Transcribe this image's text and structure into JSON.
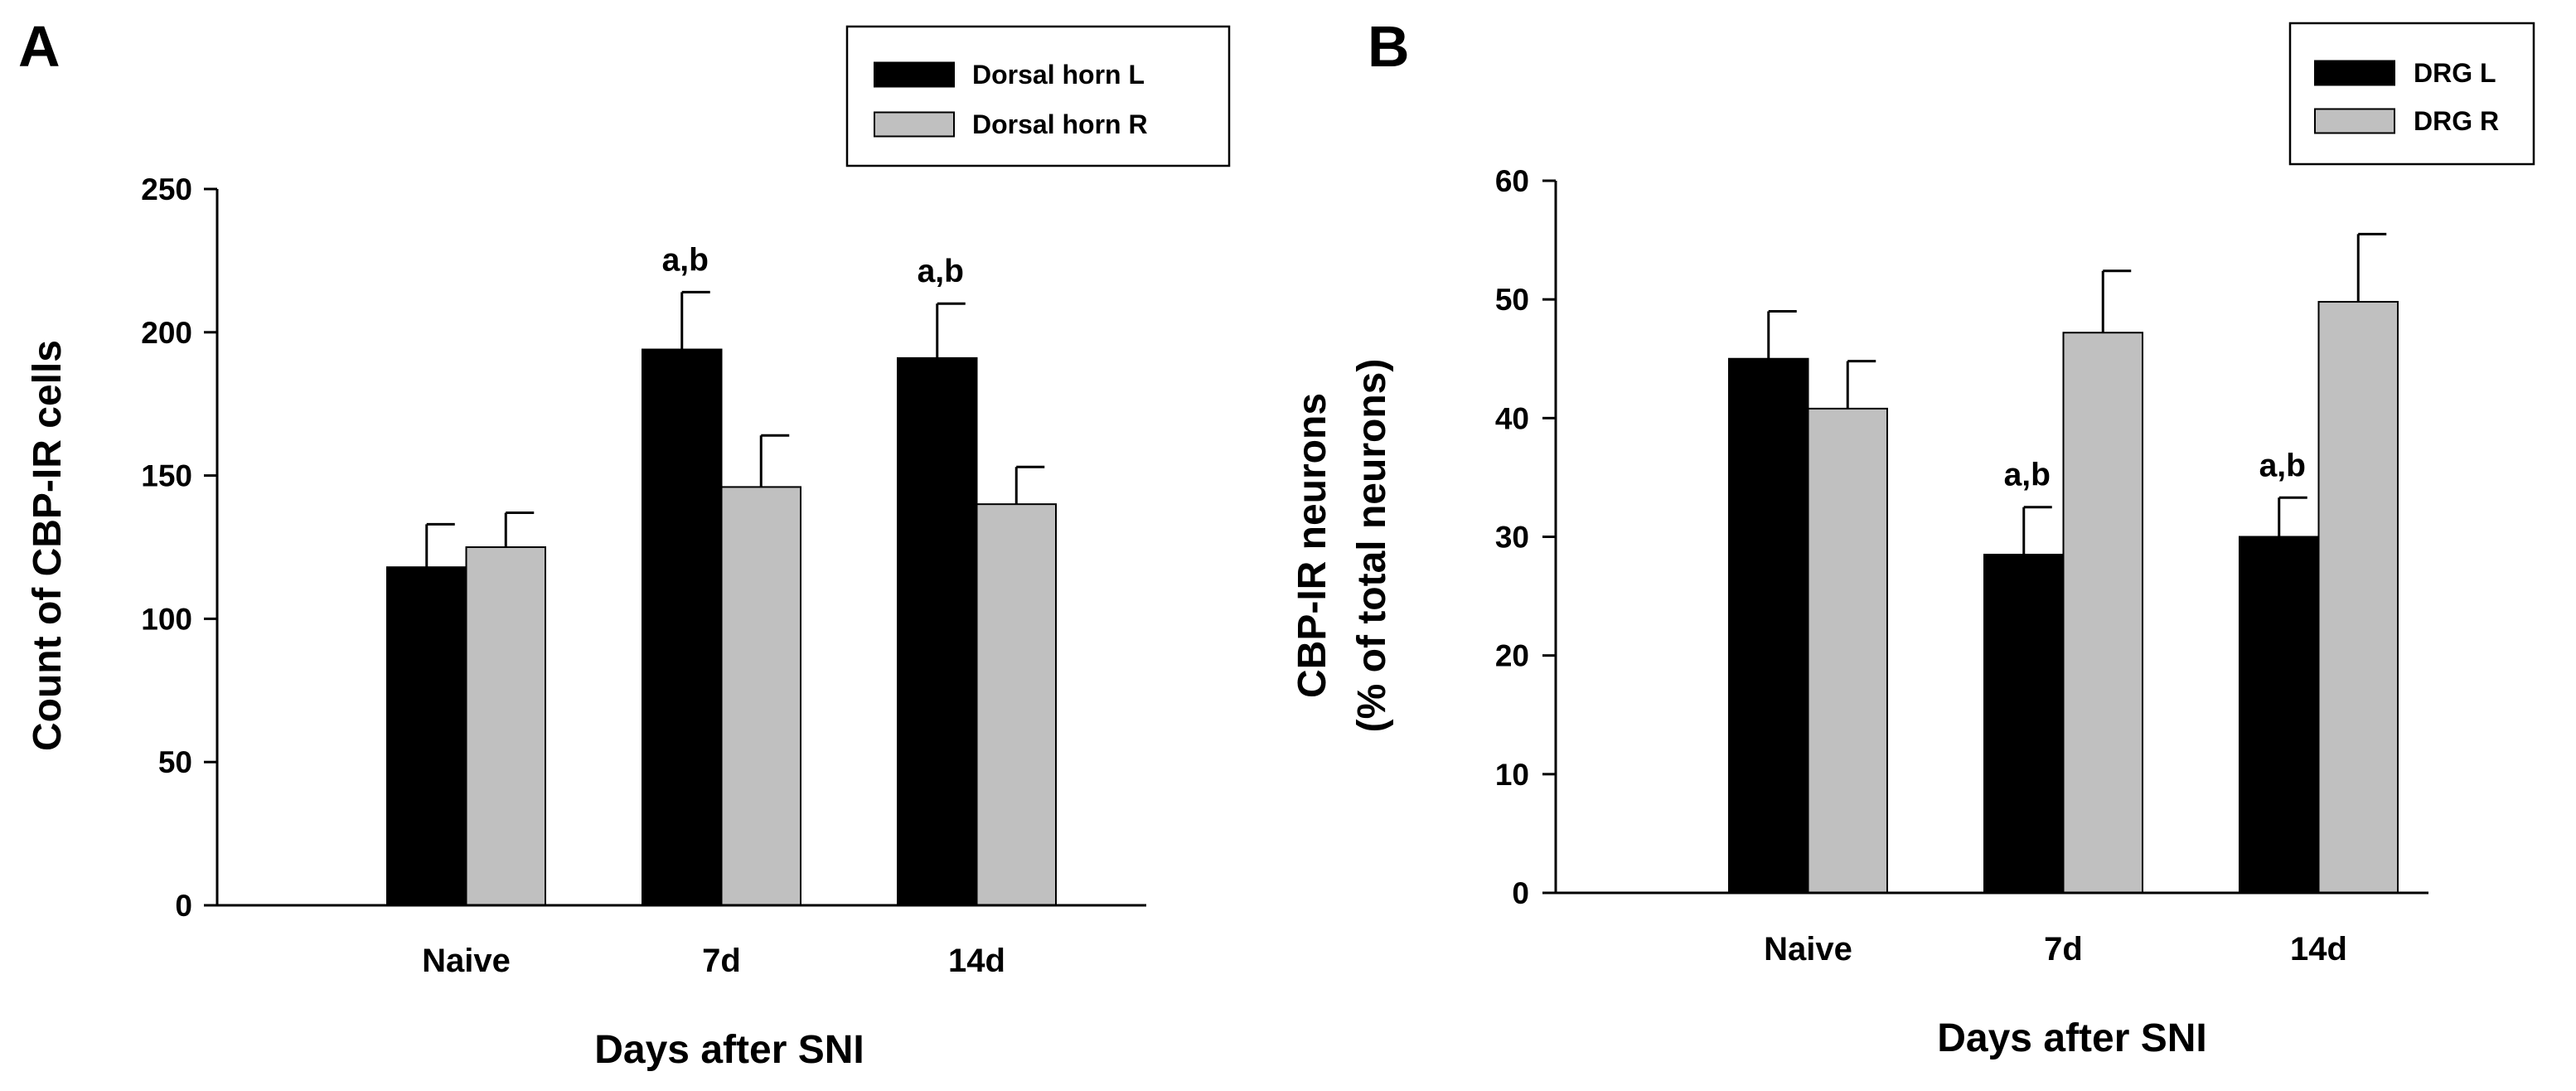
{
  "chart_data": [
    {
      "type": "bar",
      "panel_letter": "A",
      "categories": [
        "Naive",
        "7d",
        "14d"
      ],
      "series": [
        {
          "name": "Dorsal horn L",
          "color": "#000000",
          "values": [
            118,
            194,
            191
          ],
          "errors": [
            15,
            20,
            19
          ]
        },
        {
          "name": "Dorsal horn R",
          "color": "#c0c0c0",
          "values": [
            125,
            146,
            140
          ],
          "errors": [
            12,
            18,
            13
          ]
        }
      ],
      "annotations": [
        {
          "text": "a,b",
          "category": "7d",
          "series": "Dorsal horn L"
        },
        {
          "text": "a,b",
          "category": "14d",
          "series": "Dorsal horn L"
        }
      ],
      "xlabel": "Days after SNI",
      "ylabel": [
        "Count of CBP-IR cells"
      ],
      "ylim": [
        0,
        250
      ],
      "yticks": [
        "0",
        "50",
        "100",
        "150",
        "200",
        "250"
      ],
      "legend_position": "top-right",
      "grid": false
    },
    {
      "type": "bar",
      "panel_letter": "B",
      "categories": [
        "Naive",
        "7d",
        "14d"
      ],
      "series": [
        {
          "name": "DRG L",
          "color": "#000000",
          "values": [
            45,
            28.5,
            30
          ],
          "errors": [
            4,
            4,
            3.3
          ]
        },
        {
          "name": "DRG R",
          "color": "#c0c0c0",
          "values": [
            40.8,
            47.2,
            49.8
          ],
          "errors": [
            4,
            5.2,
            5.7
          ]
        }
      ],
      "annotations": [
        {
          "text": "a,b",
          "category": "7d",
          "series": "DRG L"
        },
        {
          "text": "a,b",
          "category": "14d",
          "series": "DRG L"
        }
      ],
      "xlabel": "Days after SNI",
      "ylabel": [
        "CBP-IR neurons",
        "(% of total neurons)"
      ],
      "ylim": [
        0,
        60
      ],
      "yticks": [
        "0",
        "10",
        "20",
        "30",
        "40",
        "50",
        "60"
      ],
      "legend_position": "top-right",
      "grid": false
    }
  ]
}
